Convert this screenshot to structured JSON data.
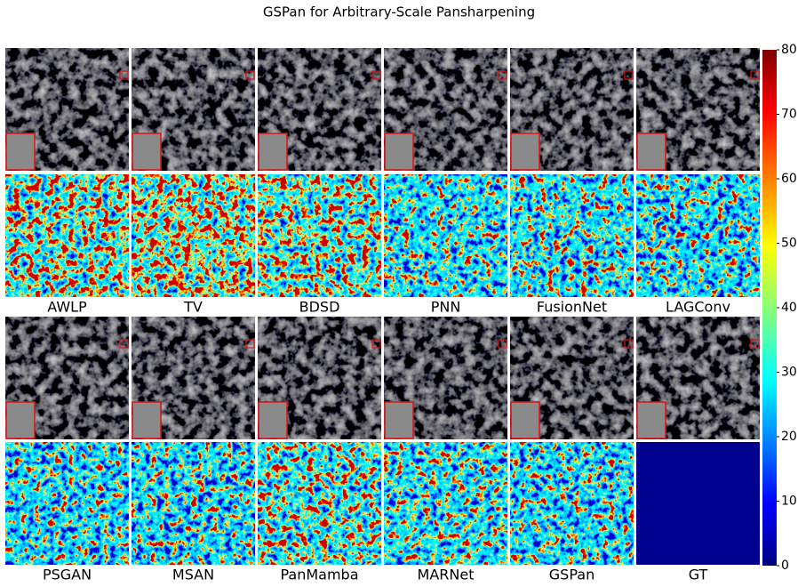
{
  "title": "GSPan for Arbitrary-Scale Pansharpening",
  "rows": [
    {
      "methods": [
        "AWLP",
        "TV",
        "BDSD",
        "PNN",
        "FusionNet",
        "LAGConv"
      ]
    },
    {
      "methods": [
        "PSGAN",
        "MSAN",
        "PanMamba",
        "MARNet",
        "GSPan",
        "GT"
      ]
    }
  ],
  "colorbar": {
    "range": [
      0,
      80
    ],
    "ticks": [
      0,
      10,
      20,
      30,
      40,
      50,
      60,
      70,
      80
    ]
  }
}
